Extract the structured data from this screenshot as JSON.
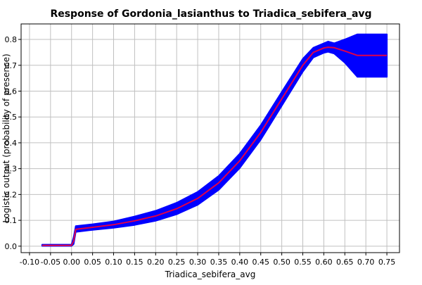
{
  "chart_data": {
    "type": "line",
    "title": "Response of Gordonia_lasianthus to Triadica_sebifera_avg",
    "xlabel": "Triadica_sebifera_avg",
    "ylabel": "Logistic output (probability of presence)",
    "xlim": [
      -0.12,
      0.78
    ],
    "ylim": [
      -0.025,
      0.86
    ],
    "x_ticks": [
      "-0.10",
      "-0.05",
      "0.00",
      "0.05",
      "0.10",
      "0.15",
      "0.20",
      "0.25",
      "0.30",
      "0.35",
      "0.40",
      "0.45",
      "0.50",
      "0.55",
      "0.60",
      "0.65",
      "0.70",
      "0.75"
    ],
    "y_ticks": [
      "0.0",
      "0.1",
      "0.2",
      "0.3",
      "0.4",
      "0.5",
      "0.6",
      "0.7",
      "0.8"
    ],
    "grid": true,
    "colors": {
      "band": "#0000ff",
      "mean": "#e0004a",
      "grid": "#c0c0c0"
    },
    "series": [
      {
        "role": "mean",
        "x": [
          -0.07,
          0.0,
          0.005,
          0.01,
          0.05,
          0.1,
          0.15,
          0.2,
          0.25,
          0.3,
          0.35,
          0.4,
          0.45,
          0.5,
          0.55,
          0.575,
          0.6,
          0.61,
          0.625,
          0.65,
          0.68,
          0.75
        ],
        "y": [
          0.003,
          0.003,
          0.02,
          0.065,
          0.073,
          0.083,
          0.098,
          0.117,
          0.145,
          0.185,
          0.245,
          0.33,
          0.44,
          0.57,
          0.7,
          0.75,
          0.767,
          0.77,
          0.768,
          0.755,
          0.738,
          0.738
        ]
      },
      {
        "role": "upper",
        "x": [
          -0.07,
          0.0,
          0.005,
          0.01,
          0.05,
          0.1,
          0.15,
          0.2,
          0.25,
          0.3,
          0.35,
          0.4,
          0.45,
          0.5,
          0.55,
          0.575,
          0.6,
          0.61,
          0.625,
          0.65,
          0.68,
          0.75
        ],
        "y": [
          0.006,
          0.006,
          0.035,
          0.078,
          0.085,
          0.096,
          0.115,
          0.137,
          0.168,
          0.21,
          0.272,
          0.358,
          0.468,
          0.597,
          0.725,
          0.768,
          0.785,
          0.792,
          0.785,
          0.8,
          0.82,
          0.82
        ]
      },
      {
        "role": "lower",
        "x": [
          -0.07,
          0.0,
          0.005,
          0.01,
          0.05,
          0.1,
          0.15,
          0.2,
          0.25,
          0.3,
          0.35,
          0.4,
          0.45,
          0.5,
          0.55,
          0.575,
          0.6,
          0.61,
          0.625,
          0.65,
          0.68,
          0.75
        ],
        "y": [
          0.001,
          0.001,
          0.008,
          0.055,
          0.063,
          0.071,
          0.082,
          0.098,
          0.123,
          0.16,
          0.218,
          0.302,
          0.412,
          0.543,
          0.675,
          0.73,
          0.748,
          0.752,
          0.745,
          0.71,
          0.655,
          0.655
        ]
      }
    ]
  }
}
